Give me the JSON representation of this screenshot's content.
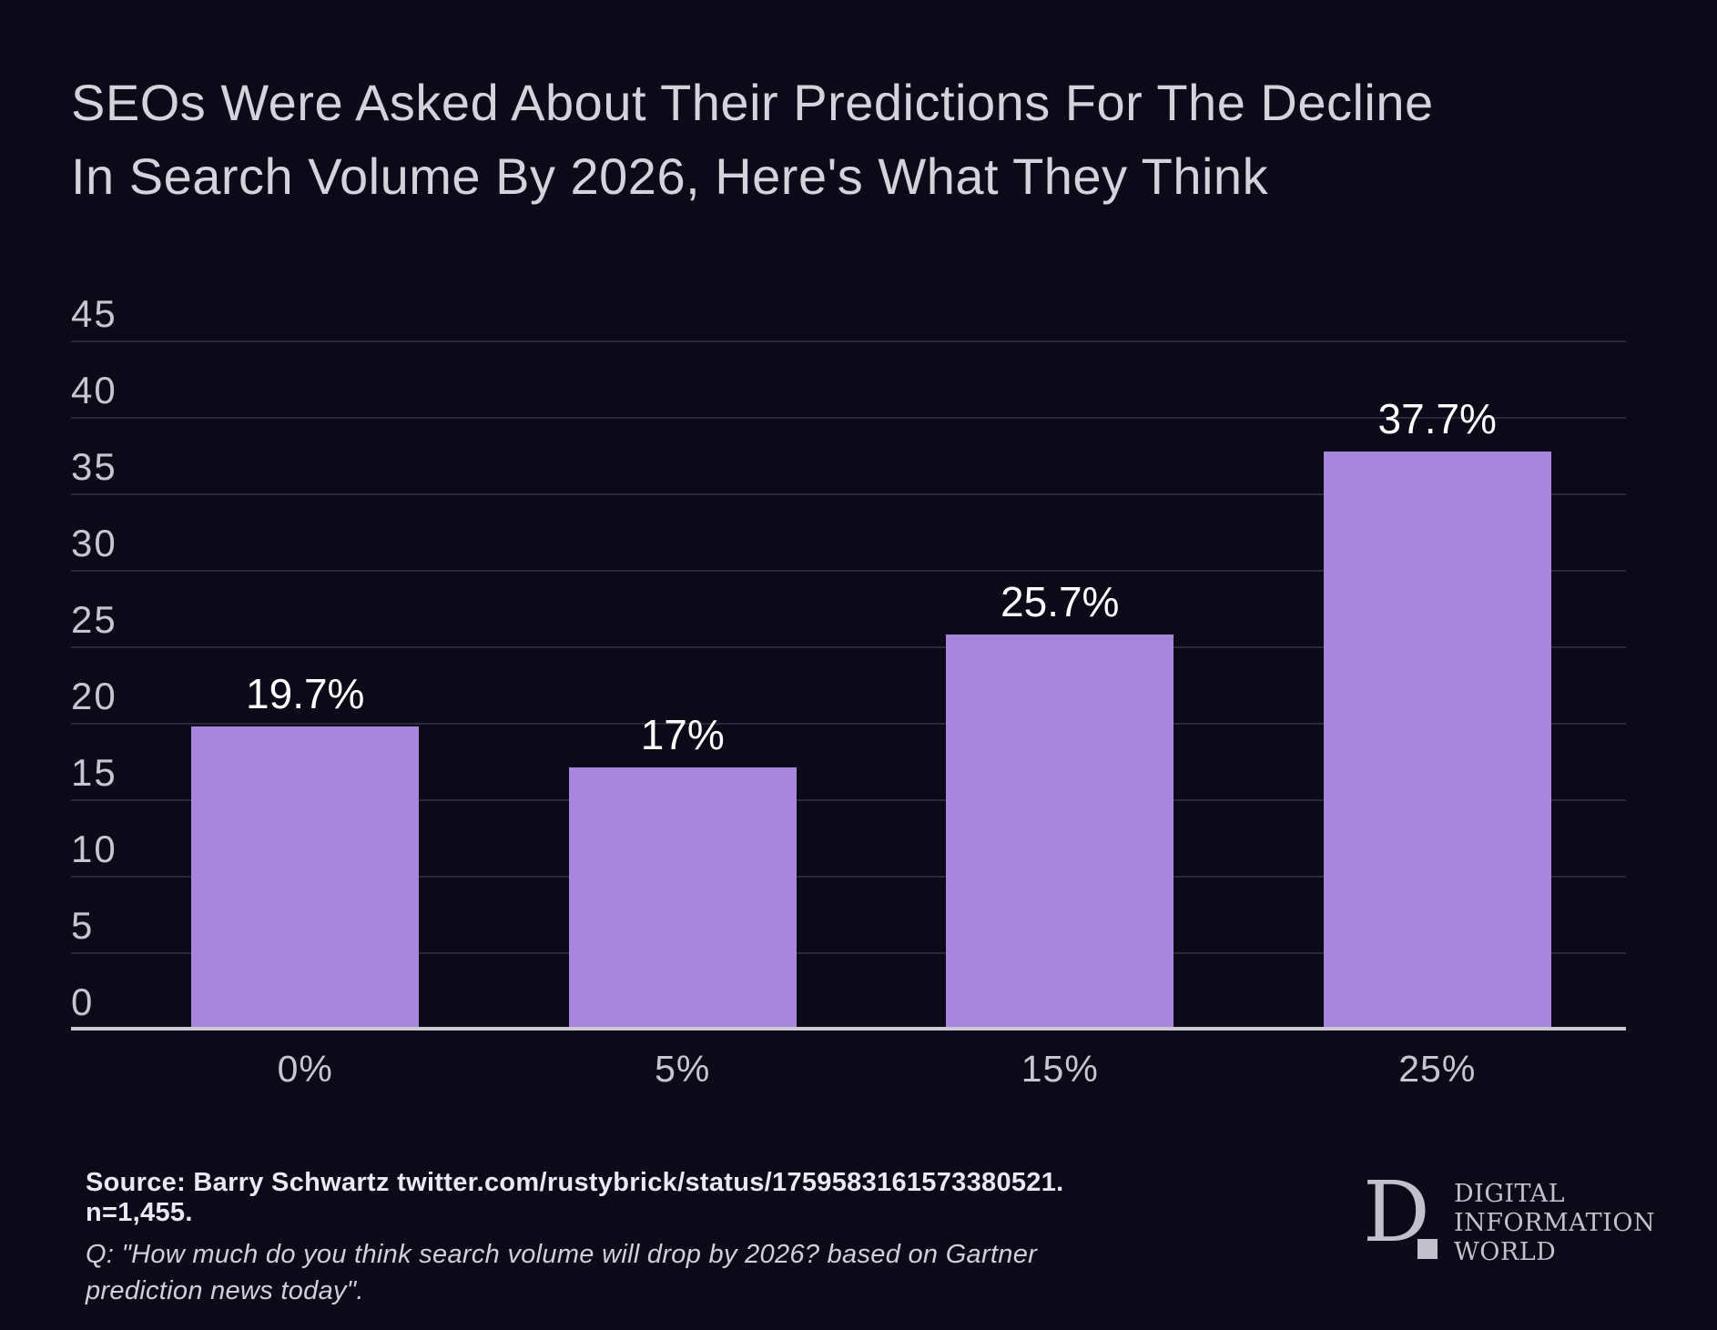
{
  "title": {
    "line1": "SEOs Were Asked About Their Predictions For The Decline",
    "line2": "In Search Volume By 2026, Here's What They Think"
  },
  "chart_data": {
    "type": "bar",
    "title": "SEOs Were Asked About Their Predictions For The Decline In Search Volume By 2026, Here's What They Think",
    "categories": [
      "0%",
      "5%",
      "15%",
      "25%"
    ],
    "values": [
      19.7,
      17,
      25.7,
      37.7
    ],
    "value_labels": [
      "19.7%",
      "17%",
      "25.7%",
      "37.7%"
    ],
    "xlabel": "",
    "ylabel": "",
    "ylim": [
      0,
      45
    ],
    "y_ticks": [
      0,
      5,
      10,
      15,
      20,
      25,
      30,
      35,
      40,
      45
    ],
    "grid": "horizontal",
    "legend": "none",
    "colors": {
      "background": "#0c0a18",
      "bar": "#a886de",
      "value_label": "#ffffff",
      "axis_text": "#c8c4d1",
      "gridline": "#2b2839",
      "baseline": "#c9c8ce",
      "title": "#d6d2dc"
    }
  },
  "footer": {
    "source": "Source: Barry Schwartz twitter.com/rustybrick/status/1759583161573380521. n=1,455.",
    "question_line1": "Q: \"How much do you think search volume will drop by 2026? based on Gartner",
    "question_line2": "prediction news today\"."
  },
  "logo": {
    "monogram": "D",
    "line1": "DIGITAL",
    "line2": "INFORMATION",
    "line3": "WORLD"
  }
}
